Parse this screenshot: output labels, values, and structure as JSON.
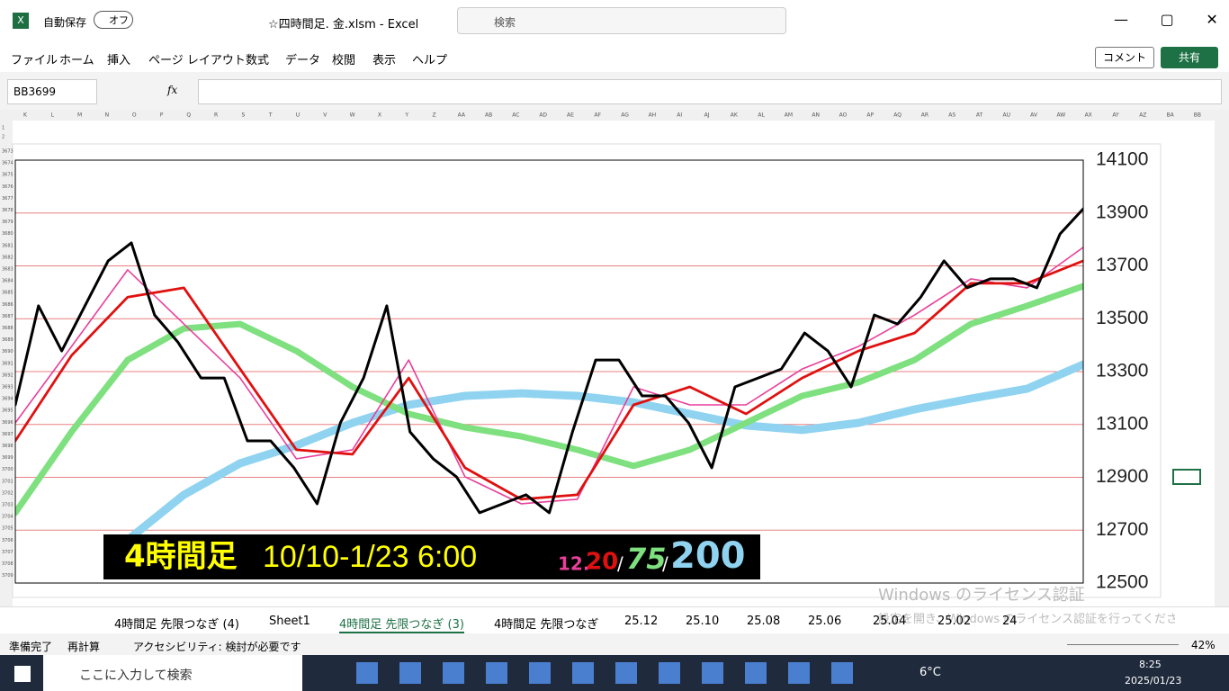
{
  "titlebar": {
    "autosave": "自動保存",
    "toggle": "オフ",
    "file": "☆四時間足. 金.xlsm  -  Excel",
    "search": "検索"
  },
  "menu": [
    "ファイル",
    "ホーム",
    "挿入",
    "ページ レイアウト",
    "数式",
    "データ",
    "校閲",
    "表示",
    "ヘルプ"
  ],
  "buttons": {
    "comment": "コメント",
    "share": "共有"
  },
  "formula": {
    "namebox": "BB3699",
    "fx": "fx"
  },
  "columns": [
    "K",
    "L",
    "M",
    "N",
    "O",
    "P",
    "Q",
    "R",
    "S",
    "T",
    "U",
    "V",
    "W",
    "X",
    "Y",
    "Z",
    "AA",
    "AB",
    "AC",
    "AD",
    "AE",
    "AF",
    "AG",
    "AH",
    "AI",
    "AJ",
    "AK",
    "AL",
    "AM",
    "AN",
    "AO",
    "AP",
    "AQ",
    "AR",
    "AS",
    "AT",
    "AU",
    "AV",
    "AW",
    "AX",
    "AY",
    "AZ",
    "BA",
    "BB"
  ],
  "rows": [
    "1",
    "2",
    "3673",
    "3674",
    "3675",
    "3676",
    "3677",
    "3678",
    "3679",
    "3680",
    "3681",
    "3682",
    "3683",
    "3684",
    "3685",
    "3686",
    "3687",
    "3688",
    "3689",
    "3690",
    "3691",
    "3692",
    "3693",
    "3694",
    "3695",
    "3696",
    "3697",
    "3698",
    "3699",
    "3700",
    "3701",
    "3702",
    "3703",
    "3704",
    "3705",
    "3706",
    "3707",
    "3708",
    "3709"
  ],
  "chart": {
    "type": "line",
    "ylim": [
      12500,
      14100
    ],
    "yticks": [
      14100,
      13900,
      13700,
      13500,
      13300,
      13100,
      12900,
      12700,
      12500
    ],
    "series": [
      {
        "color": "#8fd3f0",
        "values": [
          null,
          null,
          12663,
          12834,
          12953,
          13021,
          13106,
          13174,
          13208,
          13218,
          13208,
          13184,
          13140,
          13096,
          13079,
          13106,
          13157,
          13198,
          13235,
          13327
        ]
      },
      {
        "color": "#7ee07e",
        "values": [
          12766,
          13072,
          13344,
          13463,
          13480,
          13378,
          13242,
          13140,
          13089,
          13055,
          13004,
          12943,
          13004,
          13106,
          13208,
          13259,
          13344,
          13480,
          13549,
          13623
        ]
      },
      {
        "color": "#e8409a",
        "values": [
          13106,
          13395,
          13685,
          13480,
          13276,
          12970,
          13004,
          13344,
          12902,
          12800,
          12817,
          13242,
          13174,
          13174,
          13310,
          13395,
          13514,
          13651,
          13617,
          13770
        ]
      },
      {
        "color": "#e01010",
        "values": [
          13038,
          13361,
          13582,
          13617,
          13310,
          13004,
          12987,
          13276,
          12936,
          12817,
          12834,
          13174,
          13242,
          13140,
          13276,
          13378,
          13446,
          13634,
          13634,
          13719
        ]
      },
      {
        "color": "#000000",
        "values": [
          13174,
          13549,
          13378,
          13549,
          13719,
          13787,
          13514,
          13412,
          13276,
          13276,
          13038,
          13038,
          12936,
          12800,
          13106,
          13276,
          13549,
          13072,
          12970,
          12902,
          12766,
          12800,
          12834,
          12766,
          13072,
          13344,
          13344,
          13208,
          13208,
          13106,
          12936,
          13242,
          13276,
          13310,
          13446,
          13378,
          13242,
          13514,
          13480,
          13582,
          13719,
          13617,
          13651,
          13651,
          13617,
          13821,
          13916
        ]
      }
    ],
    "banner": {
      "label": "4時間足",
      "range": "10/10-1/23 6:00",
      "ma1": "12.",
      "ma2": "20",
      "sep1": "/",
      "ma3": "75",
      "sep2": "/",
      "ma4": "200"
    }
  },
  "sheets": [
    "4時間足 先限つなぎ (4)",
    "Sheet1",
    "4時間足 先限つなぎ (3)",
    "4時間足 先限つなぎ",
    "25.12",
    "25.10",
    "25.08",
    "25.06",
    "25.04",
    "25.02",
    "24"
  ],
  "watermark": {
    "title": "Windows のライセンス認証",
    "text": "設定を開き、Windows のライセンス認証を行ってください。"
  },
  "status": {
    "ready": "準備完了",
    "recalc": "再計算",
    "access": "アクセシビリティ: 検討が必要です",
    "zoom": "42%"
  },
  "taskbar": {
    "search": "ここに入力して検索",
    "temp": "6°C",
    "time": "8:25",
    "date": "2025/01/23"
  }
}
